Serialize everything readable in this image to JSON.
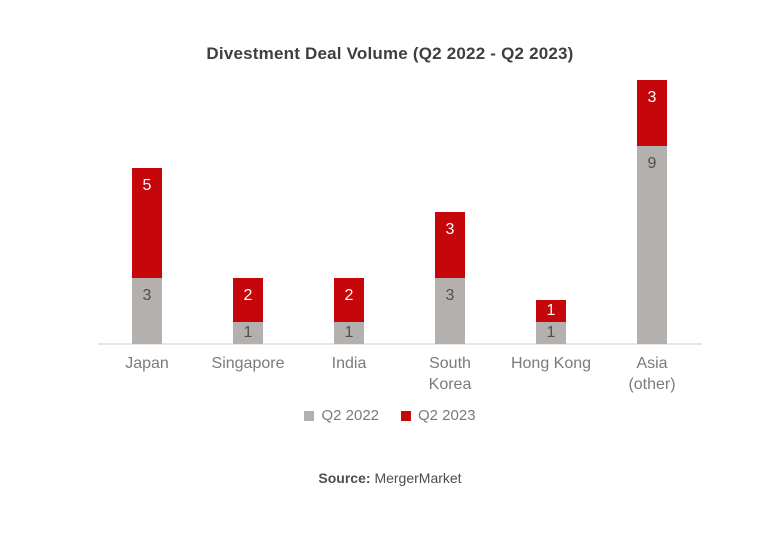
{
  "chart_data": {
    "type": "bar",
    "stacked": true,
    "title": "Divestment Deal Volume (Q2 2022 - Q2 2023)",
    "categories": [
      "Japan",
      "Singapore",
      "India",
      "South\nKorea",
      "Hong Kong",
      "Asia\n(other)"
    ],
    "series": [
      {
        "name": "Q2 2022",
        "color": "#B4B0AD",
        "values": [
          3,
          1,
          1,
          3,
          1,
          9
        ]
      },
      {
        "name": "Q2 2023",
        "color": "#C5070C",
        "values": [
          5,
          2,
          2,
          3,
          1,
          3
        ]
      }
    ],
    "value_labels": true,
    "xlabel": "",
    "ylabel": "",
    "ylim": [
      0,
      12
    ],
    "grid": false,
    "legend_position": "bottom"
  },
  "source": {
    "label": "Source:",
    "value": "MergerMarket"
  },
  "colors": {
    "q2_2022_gray": "#B4B0AD",
    "q2_2023_red": "#C5070C",
    "title_text": "#3F3F3F",
    "axis_label_text": "#7B7B7B",
    "value_on_gray": "#4F4F4F",
    "value_on_red": "#FFFFFF",
    "axis_line": "#E9E7E5",
    "source_text": "#4D4D4D",
    "background": "#FFFFFF"
  }
}
